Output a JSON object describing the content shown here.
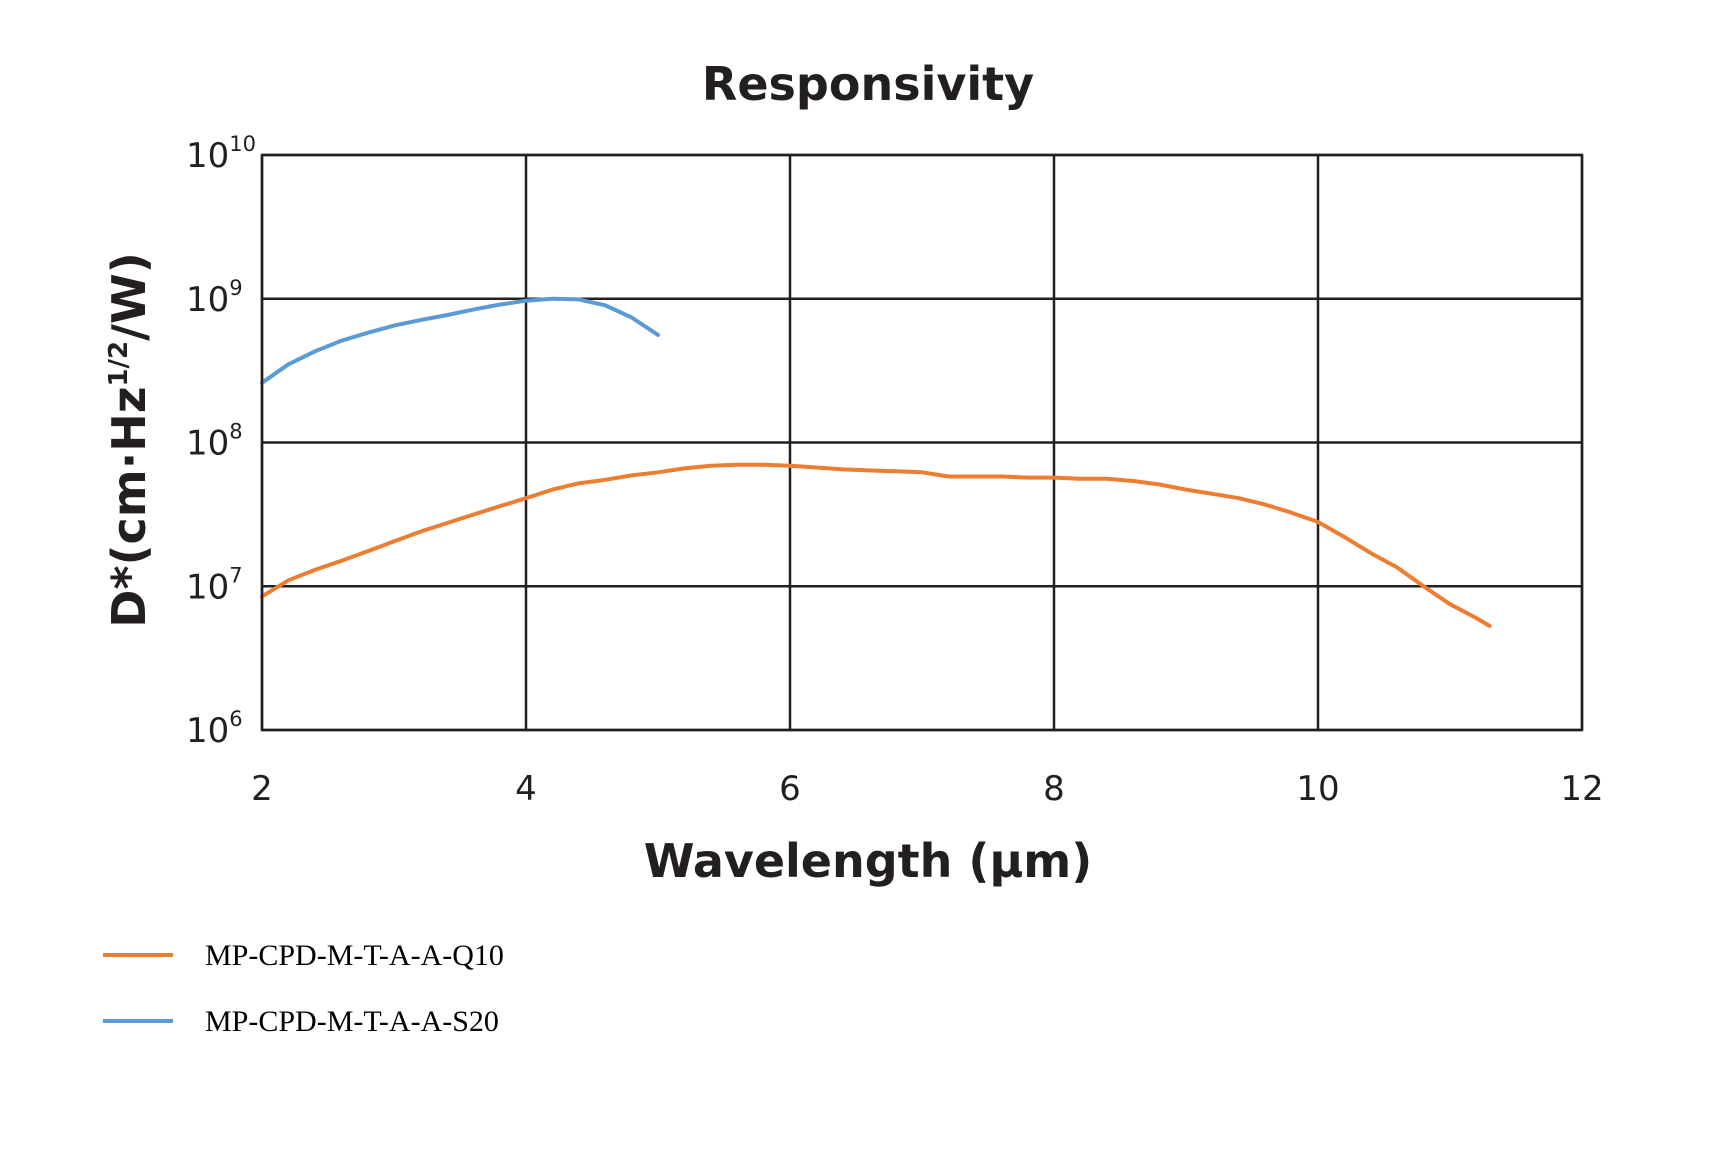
{
  "chart_data": {
    "type": "line",
    "title": "Responsivity",
    "xlabel": "Wavelength (μm)",
    "ylabel": {
      "prefix": "D*(cm·Hz",
      "superscript": "1/2",
      "suffix": "/W)"
    },
    "x_scale": "linear",
    "y_scale": "log",
    "xlim": [
      2,
      12
    ],
    "ylim": [
      1000000,
      10000000000
    ],
    "grid": true,
    "legend_position": "bottom-left",
    "x_ticks": [
      "2",
      "4",
      "6",
      "8",
      "10",
      "12"
    ],
    "y_ticks": [
      {
        "base": "10",
        "exp": "6"
      },
      {
        "base": "10",
        "exp": "7"
      },
      {
        "base": "10",
        "exp": "8"
      },
      {
        "base": "10",
        "exp": "9"
      },
      {
        "base": "10",
        "exp": "10"
      }
    ],
    "series": [
      {
        "name": "MP-CPD-M-T-A-A-Q10",
        "color": "#ed7d31",
        "x": [
          2.0,
          2.2,
          2.4,
          2.6,
          2.8,
          3.0,
          3.2,
          3.4,
          3.6,
          3.8,
          4.0,
          4.2,
          4.4,
          4.6,
          4.8,
          5.0,
          5.2,
          5.4,
          5.6,
          5.8,
          6.0,
          6.2,
          6.4,
          6.6,
          6.8,
          7.0,
          7.2,
          7.4,
          7.6,
          7.8,
          8.0,
          8.2,
          8.4,
          8.6,
          8.8,
          9.0,
          9.2,
          9.4,
          9.6,
          9.8,
          10.0,
          10.2,
          10.4,
          10.6,
          10.8,
          11.0,
          11.2,
          11.3
        ],
        "values": [
          8500000,
          11000000,
          13000000,
          15000000,
          17500000,
          20500000,
          24000000,
          27500000,
          31500000,
          36000000,
          41000000,
          47000000,
          52000000,
          55000000,
          59000000,
          62000000,
          66000000,
          69000000,
          70000000,
          70000000,
          69000000,
          67000000,
          65000000,
          64000000,
          63000000,
          62000000,
          58000000,
          58000000,
          58000000,
          57000000,
          57000000,
          56000000,
          56000000,
          54000000,
          51000000,
          47000000,
          44000000,
          41000000,
          37000000,
          32500000,
          28000000,
          22000000,
          17000000,
          13500000,
          10000000,
          7500000,
          6000000,
          5300000
        ]
      },
      {
        "name": "MP-CPD-M-T-A-A-S20",
        "color": "#5b9bd5",
        "x": [
          2.0,
          2.2,
          2.4,
          2.6,
          2.8,
          3.0,
          3.2,
          3.4,
          3.6,
          3.8,
          4.0,
          4.2,
          4.4,
          4.6,
          4.8,
          5.0
        ],
        "values": [
          260000000,
          350000000,
          430000000,
          510000000,
          580000000,
          650000000,
          710000000,
          770000000,
          840000000,
          910000000,
          970000000,
          1000000000,
          990000000,
          900000000,
          740000000,
          560000000
        ]
      }
    ]
  }
}
